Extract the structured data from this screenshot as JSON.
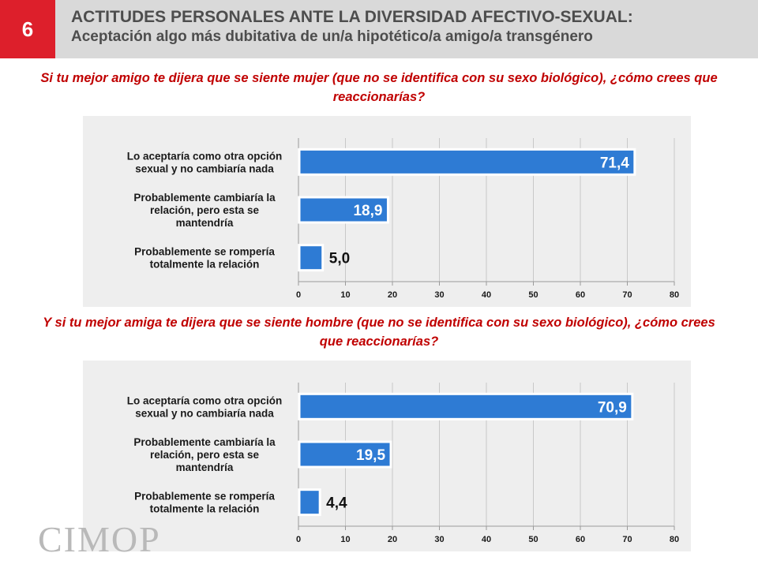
{
  "header": {
    "slide_number": "6",
    "title": "ACTITUDES PERSONALES ANTE LA DIVERSIDAD AFECTIVO-SEXUAL:",
    "subtitle": "Aceptación algo más dubitativa de un/a hipotético/a amigo/a transgénero"
  },
  "questions": [
    "Si tu mejor amigo te dijera que se siente mujer (que no se identifica con su sexo biológico), ¿cómo crees que reaccionarías?",
    "Y si tu mejor amiga te dijera que se siente hombre (que no se identifica con su sexo biológico), ¿cómo crees que reaccionarías?"
  ],
  "logo_text": "CIMOP",
  "colors": {
    "bar": "#2e7bd4",
    "bar_border": "#ffffff",
    "panel_bg": "#eeeeee",
    "grid": "#c8c8c8",
    "accent_red": "#dd1f2b",
    "question_red": "#c00000"
  },
  "chart_data": [
    {
      "type": "bar",
      "orientation": "horizontal",
      "categories": [
        [
          "Lo aceptaría como otra opción",
          "sexual y no cambiaría nada"
        ],
        [
          "Probablemente cambiaría la",
          "relación, pero esta se",
          "mantendría"
        ],
        [
          "Probablemente se rompería",
          "totalmente la relación"
        ]
      ],
      "values": [
        71.4,
        18.9,
        5.0
      ],
      "value_labels": [
        "71,4",
        "18,9",
        "5,0"
      ],
      "xlim": [
        0,
        80
      ],
      "xticks": [
        0,
        10,
        20,
        30,
        40,
        50,
        60,
        70,
        80
      ],
      "grid": true
    },
    {
      "type": "bar",
      "orientation": "horizontal",
      "categories": [
        [
          "Lo aceptaría como otra opción",
          "sexual y no cambiaría nada"
        ],
        [
          "Probablemente cambiaría la",
          "relación, pero esta se",
          "mantendría"
        ],
        [
          "Probablemente se rompería",
          "totalmente la relación"
        ]
      ],
      "values": [
        70.9,
        19.5,
        4.4
      ],
      "value_labels": [
        "70,9",
        "19,5",
        "4,4"
      ],
      "xlim": [
        0,
        80
      ],
      "xticks": [
        0,
        10,
        20,
        30,
        40,
        50,
        60,
        70,
        80
      ],
      "grid": true
    }
  ]
}
